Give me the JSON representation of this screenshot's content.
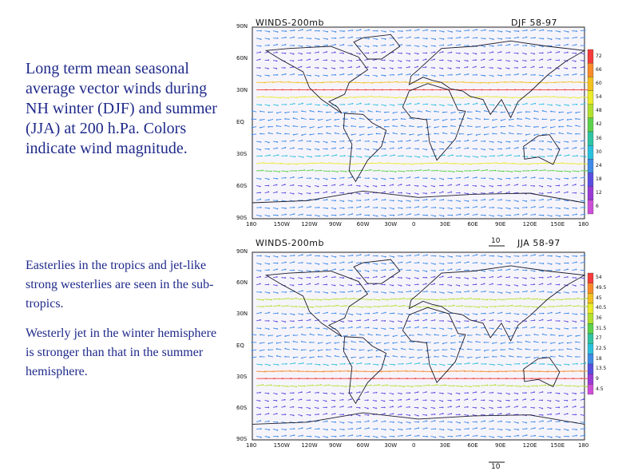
{
  "text": {
    "main": "Long term mean seasonal average vector winds during NH winter (DJF) and summer (JJA) at 200 h.Pa. Colors indicate wind magnitude.",
    "note1": "Easterlies in the tropics and jet-like strong westerlies are seen in the sub-tropics.",
    "note2": "Westerly jet in the winter hemisphere is stronger than that in the summer hemisphere."
  },
  "maps": [
    {
      "title": "WINDS-200mb",
      "period": "DJF 58-97",
      "lat_labels": [
        "90N",
        "60N",
        "30N",
        "EQ",
        "30S",
        "60S",
        "90S"
      ],
      "lon_labels": [
        "180",
        "150W",
        "120W",
        "90W",
        "60W",
        "30W",
        "0",
        "30E",
        "60E",
        "90E",
        "120E",
        "150E",
        "180"
      ],
      "colorbar_labels": [
        "72",
        "66",
        "60",
        "54",
        "48",
        "42",
        "36",
        "30",
        "24",
        "18",
        "12",
        "6"
      ]
    },
    {
      "title": "WINDS-200mb",
      "period": "JJA 58-97",
      "scale_top": "10",
      "scale_bottom": "10",
      "lat_labels": [
        "90N",
        "60N",
        "30N",
        "EQ",
        "30S",
        "60S",
        "90S"
      ],
      "lon_labels": [
        "180",
        "150W",
        "120W",
        "90W",
        "60W",
        "30W",
        "0",
        "30E",
        "60E",
        "90E",
        "120E",
        "150E",
        "180"
      ],
      "colorbar_labels": [
        "54",
        "49.5",
        "45",
        "40.5",
        "36",
        "31.5",
        "27",
        "22.5",
        "18",
        "13.5",
        "9",
        "4.5"
      ]
    }
  ],
  "colors": {
    "text_blue": "#1f2a8a",
    "speed_ramp": [
      "#f43c3c",
      "#f88a2a",
      "#f2c020",
      "#eaea2a",
      "#b2e02e",
      "#5cd24a",
      "#2fc4a2",
      "#2ac0dc",
      "#3e8ae6",
      "#5a4ee0",
      "#9a3ad4",
      "#ce4ed8"
    ]
  }
}
